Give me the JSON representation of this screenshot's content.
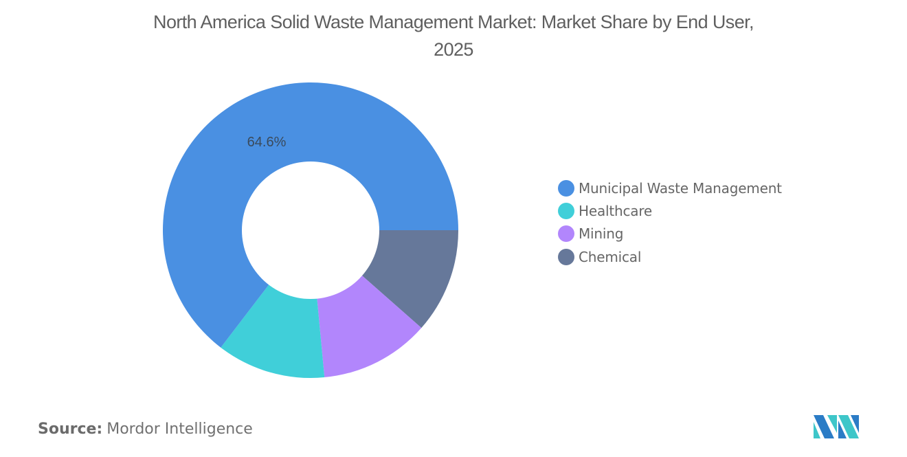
{
  "title": {
    "line1": "North America Solid Waste Management Market: Market Share by End User,",
    "line2": "2025"
  },
  "chart_data": {
    "type": "pie",
    "subtype": "donut",
    "title": "North America Solid Waste Management Market: Market Share by End User, 2025",
    "categories": [
      "Municipal Waste Management",
      "Healthcare",
      "Mining",
      "Chemical"
    ],
    "values": [
      64.6,
      11.9,
      12.0,
      11.5
    ],
    "unit": "%",
    "colors": [
      "#4a90e2",
      "#40cfd9",
      "#b286fc",
      "#66789a"
    ],
    "visible_labels": [
      {
        "category": "Municipal Waste Management",
        "text": "64.6%"
      }
    ],
    "legend_position": "right",
    "start_angle_deg": 0,
    "direction": "clockwise_from_3_oclock_reverse_order"
  },
  "legend": {
    "items": [
      {
        "label": "Municipal Waste Management",
        "color": "#4a90e2"
      },
      {
        "label": "Healthcare",
        "color": "#40cfd9"
      },
      {
        "label": "Mining",
        "color": "#b286fc"
      },
      {
        "label": "Chemical",
        "color": "#66789a"
      }
    ]
  },
  "slice_label": "64.6%",
  "source": {
    "key": "Source:",
    "value": "Mordor Intelligence"
  },
  "logo": {
    "name": "mordor-intelligence-logo",
    "colors": [
      "#2b7cc6",
      "#3ec6c9"
    ]
  }
}
